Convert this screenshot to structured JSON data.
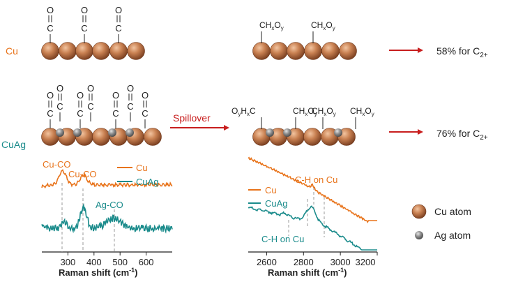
{
  "colors": {
    "cu": "#c98152",
    "cu_dark": "#8a4f2c",
    "ag": "#8a8a8a",
    "orange": "#e8731a",
    "teal": "#1a8b8b",
    "red": "#c81e1e"
  },
  "rows": {
    "cu_label": "Cu",
    "cuag_label": "CuAg"
  },
  "adsorbates": {
    "co_o": "O",
    "co_c": "C",
    "chxoy": "CHxOy",
    "ch_main": "CH",
    "ch_x": "x",
    "ch_O": "O",
    "ch_y": "y",
    "oyhxc_O": "O",
    "oyhxc_y": "y",
    "oyhxc_H": "H",
    "oyhxc_x": "x",
    "oyhxc_C": "C"
  },
  "arrow": {
    "spillover": "Spillover"
  },
  "results": {
    "cu": {
      "text": "58% for C",
      "sub": "2+"
    },
    "cuag": {
      "text": "76% for C",
      "sub": "2+"
    }
  },
  "legend": {
    "cu_atom": "Cu atom",
    "ag_atom": "Ag atom"
  },
  "left_plot": {
    "xlabel": "Raman shift (cm",
    "xlabel_sup": "-1",
    "xlabel_end": ")",
    "ticks": [
      "300",
      "400",
      "500",
      "600"
    ],
    "ann": {
      "cuco1": "Cu-CO",
      "cuco2": "Cu-CO",
      "agco": "Ag-CO"
    },
    "legend": {
      "cu": "Cu",
      "cuag": "CuAg"
    }
  },
  "right_plot": {
    "xlabel": "Raman shift (cm",
    "xlabel_sup": "-1",
    "xlabel_end": ")",
    "ticks": [
      "2600",
      "2800",
      "3000",
      "3200"
    ],
    "ann": {
      "ch_top": "C-H on Cu",
      "ch_bottom": "C-H on Cu"
    },
    "legend": {
      "cu": "Cu",
      "cuag": "CuAg"
    }
  }
}
